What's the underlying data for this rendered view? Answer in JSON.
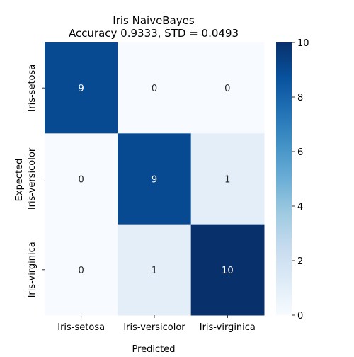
{
  "chart_data": {
    "type": "heatmap",
    "title": "Iris NaiveBayes",
    "subtitle": "Accuracy 0.9333, STD = 0.0493",
    "xlabel": "Predicted",
    "ylabel": "Expected",
    "x_categories": [
      "Iris-setosa",
      "Iris-versicolor",
      "Iris-virginica"
    ],
    "y_categories": [
      "Iris-setosa",
      "Iris-versicolor",
      "Iris-virginica"
    ],
    "matrix": [
      [
        9,
        0,
        0
      ],
      [
        0,
        9,
        1
      ],
      [
        0,
        1,
        10
      ]
    ],
    "colorbar": {
      "min": 0,
      "max": 10,
      "ticks": [
        0,
        2,
        4,
        6,
        8,
        10
      ],
      "colormap": "Blues"
    },
    "colors": {
      "low": "#f7fbff",
      "high": "#08306b",
      "annotation_dark_bg": "#ffffff",
      "annotation_light_bg": "#262626"
    },
    "grid": false
  }
}
